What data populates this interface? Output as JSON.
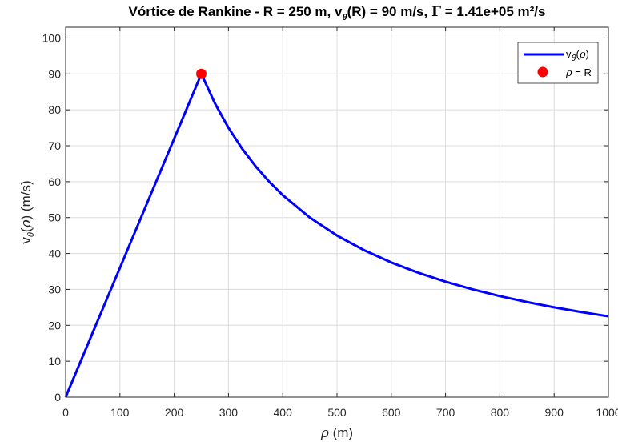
{
  "chart_data": {
    "type": "line",
    "title": {
      "part1": "Vórtice de Rankine - R = 250 m, v",
      "sub": "θ",
      "part2": "(R) = 90 m/s, ",
      "gamma": "Γ",
      "part3": " = 1.41e+05 m²/s"
    },
    "xlabel": {
      "symbol": "ρ",
      "rest": " (m)"
    },
    "ylabel": {
      "v": "v",
      "sub": "θ",
      "open": "(",
      "rho": "ρ",
      "rest": ") (m/s)"
    },
    "xlim": [
      0,
      1000
    ],
    "ylim": [
      0,
      103
    ],
    "xticks": [
      0,
      100,
      200,
      300,
      400,
      500,
      600,
      700,
      800,
      900,
      1000
    ],
    "yticks": [
      0,
      10,
      20,
      30,
      40,
      50,
      60,
      70,
      80,
      90,
      100
    ],
    "xtick_labels": [
      "0",
      "100",
      "200",
      "300",
      "400",
      "500",
      "600",
      "700",
      "800",
      "900",
      "1000"
    ],
    "ytick_labels": [
      "0",
      "10",
      "20",
      "30",
      "40",
      "50",
      "60",
      "70",
      "80",
      "90",
      "100"
    ],
    "grid": true,
    "legend_position": "top-right",
    "series": [
      {
        "name_parts": {
          "v": "v",
          "sub": "θ",
          "open": "(",
          "rho": "ρ",
          "close": ")"
        },
        "color": "#0000ff",
        "x": [
          0,
          50,
          100,
          150,
          200,
          250,
          275,
          300,
          325,
          350,
          375,
          400,
          450,
          500,
          550,
          600,
          650,
          700,
          750,
          800,
          850,
          900,
          950,
          1000
        ],
        "y": [
          0,
          18,
          36,
          54,
          72,
          90,
          81.82,
          75,
          69.23,
          64.29,
          60,
          56.25,
          50,
          45,
          40.91,
          37.5,
          34.62,
          32.14,
          30,
          28.13,
          26.47,
          25,
          23.68,
          22.5
        ]
      }
    ],
    "markers": [
      {
        "name_parts": {
          "rho": "ρ",
          "rest": " = R"
        },
        "color": "#ff0000",
        "x": 250,
        "y": 90
      }
    ]
  }
}
